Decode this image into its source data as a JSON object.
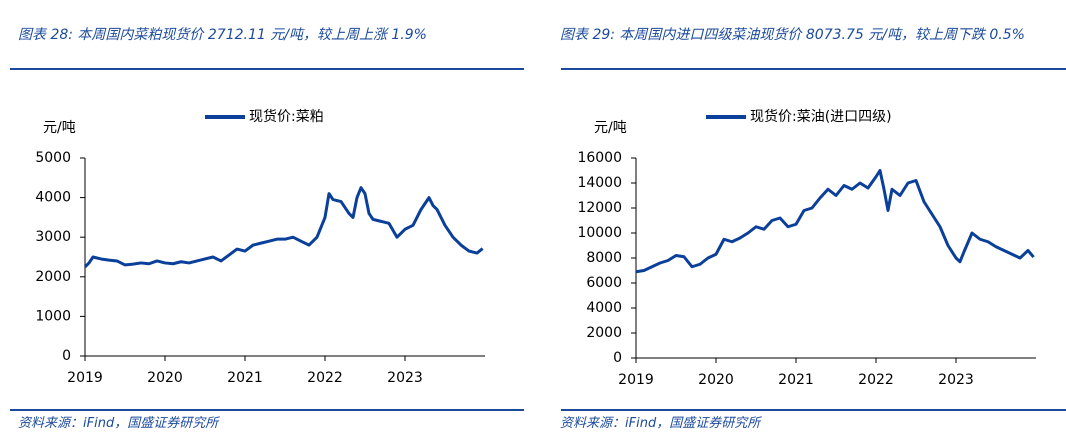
{
  "chart_data": [
    {
      "type": "line",
      "title": "图表 28:  本周国内菜粕现货价 2712.11 元/吨，较上周上涨 1.9%",
      "ylabel": "元/吨",
      "source": "资料来源：iFind，国盛证券研究所",
      "x": [
        2019.0,
        2019.05,
        2019.1,
        2019.2,
        2019.3,
        2019.4,
        2019.5,
        2019.6,
        2019.7,
        2019.8,
        2019.9,
        2020.0,
        2020.1,
        2020.2,
        2020.3,
        2020.4,
        2020.5,
        2020.6,
        2020.7,
        2020.8,
        2020.9,
        2021.0,
        2021.1,
        2021.2,
        2021.3,
        2021.4,
        2021.5,
        2021.6,
        2021.7,
        2021.8,
        2021.9,
        2022.0,
        2022.05,
        2022.1,
        2022.2,
        2022.3,
        2022.35,
        2022.4,
        2022.45,
        2022.5,
        2022.55,
        2022.6,
        2022.7,
        2022.8,
        2022.9,
        2023.0,
        2023.1,
        2023.2,
        2023.3,
        2023.35,
        2023.4,
        2023.5,
        2023.6,
        2023.7,
        2023.8,
        2023.9,
        2023.97
      ],
      "series": [
        {
          "name": "现货价:菜粕",
          "color": "#0a3f9a",
          "values": [
            2250,
            2350,
            2500,
            2450,
            2420,
            2400,
            2300,
            2320,
            2350,
            2330,
            2400,
            2350,
            2330,
            2380,
            2350,
            2400,
            2450,
            2500,
            2400,
            2550,
            2700,
            2650,
            2800,
            2850,
            2900,
            2950,
            2950,
            3000,
            2900,
            2800,
            3000,
            3500,
            4100,
            3950,
            3900,
            3600,
            3500,
            4000,
            4250,
            4100,
            3600,
            3450,
            3400,
            3350,
            3000,
            3200,
            3300,
            3700,
            4000,
            3800,
            3700,
            3300,
            3000,
            2800,
            2650,
            2600,
            2712
          ]
        }
      ],
      "xlim": [
        2019,
        2024
      ],
      "xticks": [
        2019,
        2020,
        2021,
        2022,
        2023
      ],
      "ylim": [
        0,
        5000
      ],
      "yticks": [
        0,
        1000,
        2000,
        3000,
        4000,
        5000
      ]
    },
    {
      "type": "line",
      "title": "图表 29:  本周国内进口四级菜油现货价 8073.75 元/吨，较上周下跌 0.5%",
      "ylabel": "元/吨",
      "source": "资料来源：iFind，国盛证券研究所",
      "x": [
        2019.0,
        2019.1,
        2019.2,
        2019.3,
        2019.4,
        2019.5,
        2019.6,
        2019.7,
        2019.8,
        2019.9,
        2020.0,
        2020.1,
        2020.2,
        2020.3,
        2020.4,
        2020.5,
        2020.6,
        2020.7,
        2020.8,
        2020.9,
        2021.0,
        2021.1,
        2021.2,
        2021.3,
        2021.4,
        2021.5,
        2021.6,
        2021.7,
        2021.8,
        2021.9,
        2022.0,
        2022.05,
        2022.1,
        2022.15,
        2022.2,
        2022.3,
        2022.4,
        2022.5,
        2022.6,
        2022.7,
        2022.8,
        2022.9,
        2023.0,
        2023.05,
        2023.1,
        2023.2,
        2023.3,
        2023.4,
        2023.5,
        2023.6,
        2023.7,
        2023.8,
        2023.9,
        2023.97
      ],
      "series": [
        {
          "name": "现货价:菜油(进口四级)",
          "color": "#0a3f9a",
          "values": [
            6900,
            7000,
            7300,
            7600,
            7800,
            8200,
            8100,
            7300,
            7500,
            8000,
            8300,
            9500,
            9300,
            9600,
            10000,
            10500,
            10300,
            11000,
            11200,
            10500,
            10700,
            11800,
            12000,
            12800,
            13500,
            13000,
            13800,
            13500,
            14000,
            13600,
            14500,
            15000,
            13500,
            11800,
            13500,
            13000,
            14000,
            14200,
            12500,
            11500,
            10500,
            9000,
            8000,
            7700,
            8500,
            10000,
            9500,
            9300,
            8900,
            8600,
            8300,
            8000,
            8600,
            8074
          ]
        }
      ],
      "xlim": [
        2019,
        2024
      ],
      "xticks": [
        2019,
        2020,
        2021,
        2022,
        2023
      ],
      "ylim": [
        0,
        16000
      ],
      "yticks": [
        0,
        2000,
        4000,
        6000,
        8000,
        10000,
        12000,
        14000,
        16000
      ]
    }
  ]
}
